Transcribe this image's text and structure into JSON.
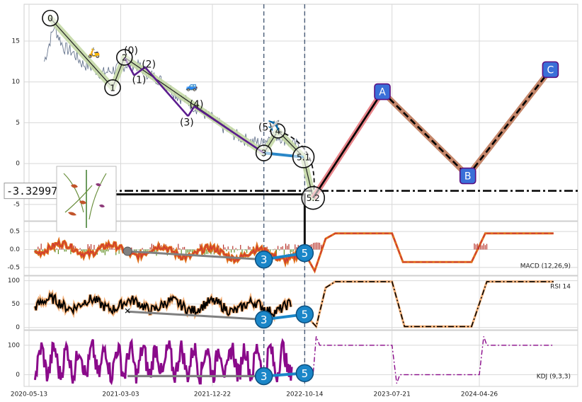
{
  "chart_data": {
    "type": "line",
    "x_ticks": [
      "2020-05-13",
      "2021-03-03",
      "2021-12-22",
      "2022-10-14",
      "2023-07-21",
      "2024-04-26"
    ],
    "price_panel": {
      "y_ticks": [
        15,
        10,
        5,
        0,
        -5
      ],
      "ylim": [
        -7,
        19.5
      ],
      "price_series": [
        {
          "date": "2020-07-01",
          "v": 12.5
        },
        {
          "date": "2020-08-01",
          "v": 16.8
        },
        {
          "date": "2020-09-01",
          "v": 14.2
        },
        {
          "date": "2020-10-01",
          "v": 13.6
        },
        {
          "date": "2020-11-01",
          "v": 12.2
        },
        {
          "date": "2020-12-01",
          "v": 11.8
        },
        {
          "date": "2021-01-01",
          "v": 11.0
        },
        {
          "date": "2021-02-01",
          "v": 11.4
        },
        {
          "date": "2021-03-01",
          "v": 11.8
        },
        {
          "date": "2021-04-01",
          "v": 12.3
        },
        {
          "date": "2021-05-01",
          "v": 11.9
        },
        {
          "date": "2021-06-01",
          "v": 10.9
        },
        {
          "date": "2021-07-01",
          "v": 10.4
        },
        {
          "date": "2021-08-01",
          "v": 9.5
        },
        {
          "date": "2021-09-01",
          "v": 8.3
        },
        {
          "date": "2021-10-01",
          "v": 7.6
        },
        {
          "date": "2021-11-01",
          "v": 6.8
        },
        {
          "date": "2021-12-01",
          "v": 6.0
        },
        {
          "date": "2022-01-01",
          "v": 5.2
        },
        {
          "date": "2022-02-01",
          "v": 4.2
        },
        {
          "date": "2022-03-01",
          "v": 3.6
        },
        {
          "date": "2022-04-01",
          "v": 3.0
        },
        {
          "date": "2022-05-01",
          "v": 2.7
        },
        {
          "date": "2022-06-01",
          "v": 2.5
        },
        {
          "date": "2022-07-01",
          "v": 3.6
        },
        {
          "date": "2022-08-01",
          "v": 3.2
        },
        {
          "date": "2022-09-01",
          "v": 2.4
        },
        {
          "date": "2022-10-01",
          "v": 2.2
        }
      ],
      "price_line_label": "-3.329976",
      "price_line_value": -3.33,
      "wave_points": [
        {
          "label": "0",
          "date": "2020-07-20",
          "v": 17.8
        },
        {
          "label": "1",
          "date": "2021-02-05",
          "v": 9.3
        },
        {
          "label": "2",
          "date": "2021-03-15",
          "v": 13.0
        },
        {
          "label": "3",
          "date": "2022-06-05",
          "v": 1.3
        },
        {
          "label": "4",
          "date": "2022-07-20",
          "v": 4.0
        },
        {
          "label": "5.1",
          "date": "2022-10-10",
          "v": 0.8
        },
        {
          "label": "5.2",
          "date": "2022-11-10",
          "v": -4.2
        }
      ],
      "sub_wave_labels": [
        {
          "label": "(0)",
          "date": "2021-04-05",
          "v": 13.8
        },
        {
          "label": "(1)",
          "date": "2021-05-01",
          "v": 10.2
        },
        {
          "label": "(2)",
          "date": "2021-06-01",
          "v": 12.1
        },
        {
          "label": "(3)",
          "date": "2021-10-01",
          "v": 5.0
        },
        {
          "label": "(4)",
          "date": "2021-11-01",
          "v": 7.2
        },
        {
          "label": "(5)",
          "date": "2022-06-10",
          "v": 4.4
        }
      ],
      "projection": [
        {
          "label": "A",
          "date": "2023-06-20",
          "v": 8.8
        },
        {
          "label": "B",
          "date": "2024-03-20",
          "v": -1.5
        },
        {
          "label": "C",
          "date": "2024-12-10",
          "v": 11.5
        }
      ]
    },
    "macd_panel": {
      "label": "MACD (12,26,9)",
      "y_ticks": [
        0.5,
        0.0,
        -0.5
      ],
      "ylim": [
        -0.72,
        0.78
      ]
    },
    "rsi_panel": {
      "label": "RSI 14",
      "y_ticks": [
        100,
        50,
        0
      ],
      "ylim": [
        -5,
        110
      ]
    },
    "kdj_panel": {
      "label": "KDJ (9,3,3)",
      "y_ticks": [
        100,
        0
      ],
      "ylim": [
        -40,
        150
      ]
    },
    "markers": [
      {
        "label": "3",
        "panel": "macd",
        "date": "2022-06-05",
        "v": -0.28
      },
      {
        "label": "5",
        "panel": "macd",
        "date": "2022-10-14",
        "v": -0.1
      },
      {
        "label": "3",
        "panel": "rsi",
        "date": "2022-06-05",
        "v": 17
      },
      {
        "label": "5",
        "panel": "rsi",
        "date": "2022-10-14",
        "v": 28
      },
      {
        "label": "3",
        "panel": "kdj",
        "date": "2022-06-05",
        "v": -5
      },
      {
        "label": "5",
        "panel": "kdj",
        "date": "2022-10-14",
        "v": 5
      }
    ],
    "vlines": [
      "2022-06-05",
      "2022-10-14"
    ],
    "colors": {
      "price": "#5a6a85",
      "wave_bg": "#c5d9a7",
      "sub_wave": "#5b1c8e",
      "projection": "#c4866a",
      "proj_pink": "#e8858a",
      "marker": "#1a86c8",
      "grid": "#d8d8d8",
      "hline": "#000000"
    },
    "icons": [
      "scooter-icon",
      "car-icon",
      "airplane-icon",
      "plant-inset-image"
    ]
  }
}
